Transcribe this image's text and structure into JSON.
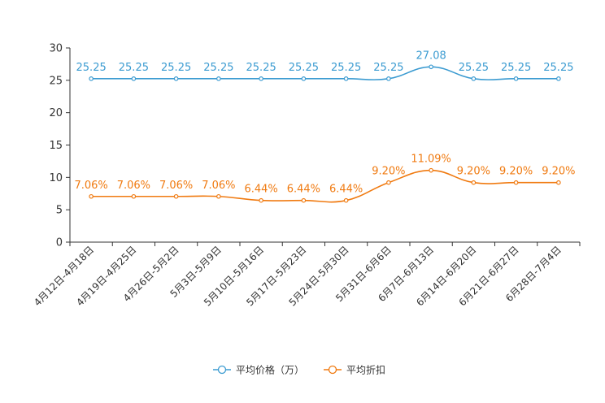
{
  "chart_data": {
    "type": "line",
    "title": "",
    "xlabel": "",
    "ylabel": "",
    "ylim": [
      0,
      30
    ],
    "yticks": [
      0,
      5,
      10,
      15,
      20,
      25,
      30
    ],
    "grid": false,
    "legend_position": "bottom-center",
    "categories": [
      "4月12日-4月18日",
      "4月19日-4月25日",
      "4月26日-5月2日",
      "5月3日-5月9日",
      "5月10日-5月16日",
      "5月17日-5月23日",
      "5月24日-5月30日",
      "5月31日-6月6日",
      "6月7日-6月13日",
      "6月14日-6月20日",
      "6月21日-6月27日",
      "6月28日-7月4日"
    ],
    "series": [
      {
        "name": "平均价格（万）",
        "color": "#3b9bd1",
        "values": [
          25.25,
          25.25,
          25.25,
          25.25,
          25.25,
          25.25,
          25.25,
          25.25,
          27.08,
          25.25,
          25.25,
          25.25
        ],
        "labels": [
          "25.25",
          "25.25",
          "25.25",
          "25.25",
          "25.25",
          "25.25",
          "25.25",
          "25.25",
          "27.08",
          "25.25",
          "25.25",
          "25.25"
        ]
      },
      {
        "name": "平均折扣",
        "color": "#f07a10",
        "values": [
          7.06,
          7.06,
          7.06,
          7.06,
          6.44,
          6.44,
          6.44,
          9.2,
          11.09,
          9.2,
          9.2,
          9.2
        ],
        "labels": [
          "7.06%",
          "7.06%",
          "7.06%",
          "7.06%",
          "6.44%",
          "6.44%",
          "6.44%",
          "9.20%",
          "11.09%",
          "9.20%",
          "9.20%",
          "9.20%"
        ]
      }
    ]
  }
}
